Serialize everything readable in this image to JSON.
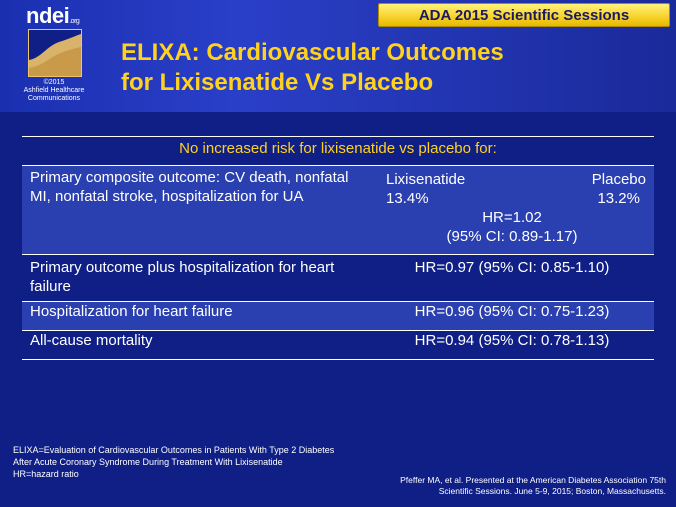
{
  "logo": {
    "brand": "ndei",
    "brand_suffix": ".org",
    "copyright_line1": "©2015",
    "copyright_line2": "Ashfield Healthcare",
    "copyright_line3": "Communications"
  },
  "badge": {
    "label": "ADA 2015 Scientific Sessions"
  },
  "title": {
    "line1": "ELIXA: Cardiovascular Outcomes",
    "line2": "for Lixisenatide Vs Placebo"
  },
  "table": {
    "header": "No increased risk for lixisenatide vs placebo for:",
    "rows": [
      {
        "outcome": "Primary composite outcome: CV death, nonfatal MI, nonfatal stroke, hospitalization for UA",
        "arm_a_label": "Lixisenatide",
        "arm_a_value": "13.4%",
        "arm_b_label": "Placebo",
        "arm_b_value": "13.2%",
        "hr": "HR=1.02",
        "ci": "(95% CI: 0.89-1.17)"
      },
      {
        "outcome": "Primary outcome plus hospitalization for heart failure",
        "result": "HR=0.97 (95% CI: 0.85-1.10)"
      },
      {
        "outcome": "Hospitalization for heart failure",
        "result": "HR=0.96 (95% CI: 0.75-1.23)"
      },
      {
        "outcome": "All-cause mortality",
        "result": "HR=0.94 (95% CI: 0.78-1.13)"
      }
    ]
  },
  "footnotes": {
    "line1": "ELIXA=Evaluation of Cardiovascular Outcomes in Patients With Type 2 Diabetes",
    "line2": "After Acute Coronary Syndrome During Treatment With Lixisenatide",
    "line3": "HR=hazard ratio"
  },
  "reference": {
    "line1": "Pfeffer MA, et al. Presented at the American Diabetes Association 75th",
    "line2": "Scientific Sessions. June 5-9, 2015; Boston, Massachusetts."
  }
}
